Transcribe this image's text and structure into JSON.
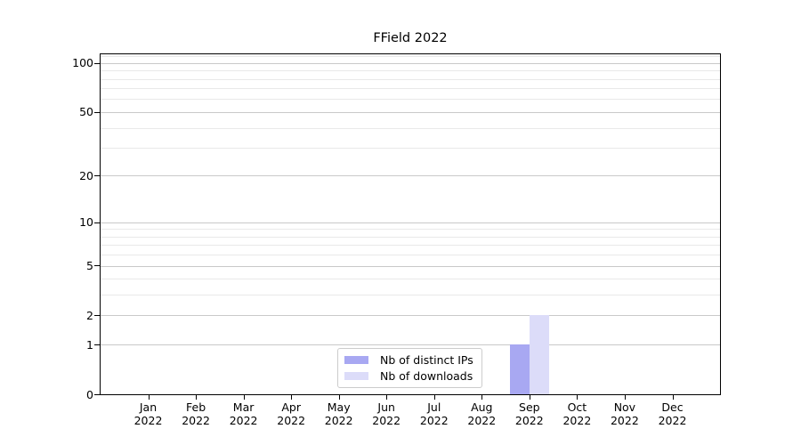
{
  "chart_data": {
    "type": "bar",
    "title": "FField 2022",
    "categories": [
      "Jan",
      "Feb",
      "Mar",
      "Apr",
      "May",
      "Jun",
      "Jul",
      "Aug",
      "Sep",
      "Oct",
      "Nov",
      "Dec"
    ],
    "category_year": "2022",
    "series": [
      {
        "name": "Nb of distinct IPs",
        "color": "#a8a8f2",
        "values": [
          0,
          0,
          0,
          0,
          0,
          0,
          0,
          0,
          1,
          0,
          0,
          0
        ]
      },
      {
        "name": "Nb of downloads",
        "color": "#dcdcf9",
        "values": [
          0,
          0,
          0,
          0,
          0,
          0,
          0,
          0,
          2,
          0,
          0,
          0
        ]
      }
    ],
    "y_axis": {
      "scale": "log1p",
      "major_ticks": [
        0,
        1,
        2,
        5,
        10,
        20,
        50,
        100
      ],
      "minor_ticks": [
        3,
        4,
        6,
        7,
        8,
        9,
        30,
        40,
        60,
        70,
        80,
        90,
        110
      ],
      "top_value": 113,
      "ylim": [
        0,
        113
      ]
    },
    "x_axis": {
      "year_line": "2022"
    },
    "legend": {
      "position": "lower center"
    },
    "grid": {
      "major_color": "#c9c9c9",
      "minor_color": "#e9e9e9"
    },
    "colors": {
      "background": "#ffffff",
      "axis": "#000000"
    }
  }
}
